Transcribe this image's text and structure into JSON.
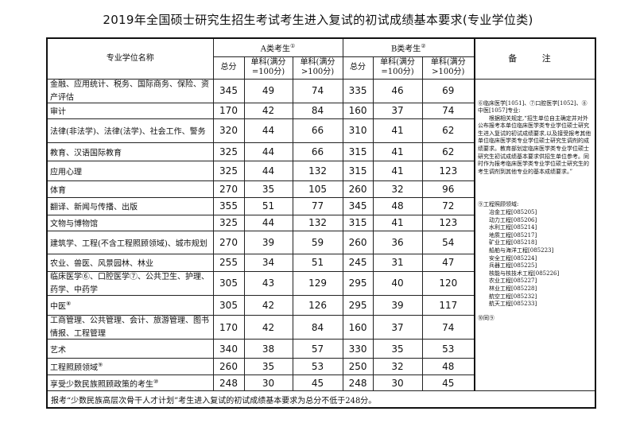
{
  "title": "2019年全国硕士研究生招生考试考生进入复试的初试成绩基本要求(专业学位类)",
  "header": {
    "name_col": "专业学位名称",
    "group_a": "A类考生",
    "group_a_note": "①",
    "group_b": "B类考生",
    "group_b_note": "②",
    "total": "总分",
    "single_100": "单科(满分=100分)",
    "single_gt100": "单科(满分>100分)",
    "remarks": "备 注"
  },
  "rows": [
    {
      "name": "金融、应用统计、税务、国际商务、保险、资产评估",
      "note": "",
      "a": [
        "345",
        "49",
        "74"
      ],
      "b": [
        "335",
        "46",
        "69"
      ]
    },
    {
      "name": "审计",
      "note": "",
      "a": [
        "170",
        "42",
        "84"
      ],
      "b": [
        "160",
        "37",
        "74"
      ]
    },
    {
      "name": "法律(非法学)、法律(法学)、社会工作、警务",
      "note": "",
      "a": [
        "320",
        "44",
        "66"
      ],
      "b": [
        "310",
        "41",
        "62"
      ]
    },
    {
      "name": "教育、汉语国际教育",
      "note": "",
      "a": [
        "325",
        "44",
        "66"
      ],
      "b": [
        "315",
        "41",
        "62"
      ]
    },
    {
      "name": "应用心理",
      "note": "",
      "a": [
        "325",
        "44",
        "132"
      ],
      "b": [
        "315",
        "41",
        "123"
      ]
    },
    {
      "name": "体育",
      "note": "",
      "a": [
        "270",
        "35",
        "105"
      ],
      "b": [
        "260",
        "32",
        "96"
      ]
    },
    {
      "name": "翻译、新闻与传播、出版",
      "note": "",
      "a": [
        "355",
        "51",
        "77"
      ],
      "b": [
        "345",
        "48",
        "72"
      ]
    },
    {
      "name": "文物与博物馆",
      "note": "",
      "a": [
        "325",
        "44",
        "132"
      ],
      "b": [
        "315",
        "41",
        "123"
      ]
    },
    {
      "name": "建筑学、工程(不含工程照顾领域)、城市规划",
      "note": "",
      "a": [
        "270",
        "39",
        "59"
      ],
      "b": [
        "260",
        "36",
        "54"
      ]
    },
    {
      "name": "农业、兽医、风景园林、林业",
      "note": "",
      "a": [
        "255",
        "34",
        "51"
      ],
      "b": [
        "245",
        "31",
        "47"
      ]
    },
    {
      "name": "临床医学⑥、口腔医学⑦、公共卫生、护理、药学、中药学",
      "note": "",
      "a": [
        "305",
        "43",
        "129"
      ],
      "b": [
        "295",
        "40",
        "120"
      ]
    },
    {
      "name": "中医",
      "note": "⑧",
      "a": [
        "305",
        "42",
        "126"
      ],
      "b": [
        "295",
        "39",
        "117"
      ]
    },
    {
      "name": "工商管理、公共管理、会计、旅游管理、图书情报、工程管理",
      "note": "",
      "a": [
        "170",
        "42",
        "84"
      ],
      "b": [
        "160",
        "37",
        "74"
      ]
    },
    {
      "name": "艺术",
      "note": "",
      "a": [
        "340",
        "38",
        "57"
      ],
      "b": [
        "330",
        "35",
        "53"
      ]
    },
    {
      "name": "工程照顾领域",
      "note": "⑨",
      "a": [
        "260",
        "35",
        "53"
      ],
      "b": [
        "250",
        "32",
        "48"
      ]
    },
    {
      "name": "享受少数民族照顾政策的考生",
      "note": "⑩",
      "a": [
        "248",
        "30",
        "45"
      ],
      "b": [
        "248",
        "30",
        "45"
      ]
    }
  ],
  "remarks": {
    "medical_head": "⑥临床医学[1051]、⑦口腔医学[1052]、⑧中医[1057]专业:",
    "medical_body": "根据相关规定,“招生单位自主确定并对外公布报考本单位临床医学类专业学位硕士研究生进入复试的初试成绩要求,以及接受报考其他单位临床医学类专业学位硕士研究生调剂的成绩要求。教育部划定临床医学类专业学位硕士研究生初试成绩基本要求供招生单位参考。同时作为报考临床医学类专业学位硕士研究生的考生调剂到其他专业的基本成绩要求。”",
    "engineering_head": "⑨工程照顾领域:",
    "engineering_fields": [
      "冶金工程[085205]",
      "动力工程[085206]",
      "水利工程[085214]",
      "地质工程[085217]",
      "矿业工程[085218]",
      "船舶与海洋工程[085223]",
      "安全工程[085224]",
      "兵器工程[085225]",
      "核能与核技术工程[085226]",
      "农业工程[085227]",
      "林业工程[085228]",
      "航空工程[085232]",
      "航天工程[085233]"
    ],
    "same_as": "⑩同⑨"
  },
  "footer": "报考“少数民族高层次骨干人才计划”考生进入复试的初试成绩基本要求为总分不低于248分。"
}
